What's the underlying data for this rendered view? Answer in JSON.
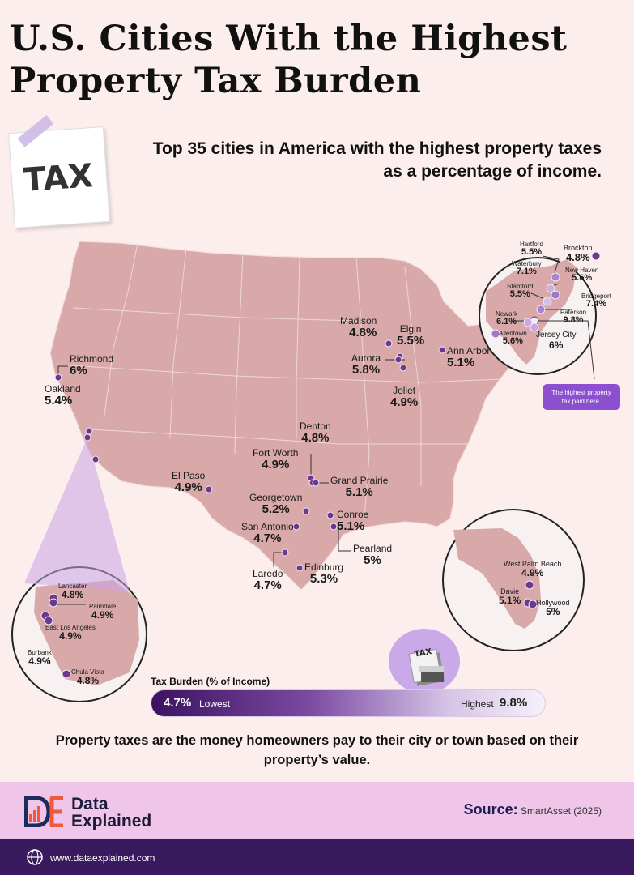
{
  "title_line1": "U.S. Cities With the Highest",
  "title_line2": "Property Tax Burden",
  "subtitle": "Top 35 cities in America with the highest property taxes as a percentage of income.",
  "note_text": "TAX",
  "callout_line1": "The highest property",
  "callout_line2": "tax paid here.",
  "legend": {
    "title": "Tax Burden (% of Income)",
    "low_value": "4.7%",
    "low_label": "Lowest",
    "high_label": "Highest",
    "high_value": "9.8%"
  },
  "footnote": "Property taxes are the money homeowners pay to their city or town based on their property’s value.",
  "brand": {
    "line1": "Data",
    "line2": "Explained"
  },
  "source": {
    "label": "Source:",
    "text": "SmartAsset (2025)"
  },
  "website": "www.dataexplained.com",
  "colors": {
    "background": "#fbeeed",
    "map_fill": "#d9a9a9",
    "accent_purple": "#6a3a8f",
    "footer_pink": "#efc6ea",
    "footer_dark": "#3a1a5e"
  },
  "cities": {
    "madison": {
      "name": "Madison",
      "value": "4.8%"
    },
    "elgin": {
      "name": "Elgin",
      "value": "5.5%"
    },
    "aurora": {
      "name": "Aurora",
      "value": "5.8%"
    },
    "joliet": {
      "name": "Joliet",
      "value": "4.9%"
    },
    "ann_arbor": {
      "name": "Ann Arbor",
      "value": "5.1%"
    },
    "richmond": {
      "name": "Richmond",
      "value": "6%"
    },
    "oakland": {
      "name": "Oakland",
      "value": "5.4%"
    },
    "denton": {
      "name": "Denton",
      "value": "4.8%"
    },
    "fort_worth": {
      "name": "Fort Worth",
      "value": "4.9%"
    },
    "grand_prairie": {
      "name": "Grand Prairie",
      "value": "5.1%"
    },
    "el_paso": {
      "name": "El Paso",
      "value": "4.9%"
    },
    "georgetown": {
      "name": "Georgetown",
      "value": "5.2%"
    },
    "conroe": {
      "name": "Conroe",
      "value": "5.1%"
    },
    "san_antonio": {
      "name": "San Antonio",
      "value": "4.7%"
    },
    "pearland": {
      "name": "Pearland",
      "value": "5%"
    },
    "laredo": {
      "name": "Laredo",
      "value": "4.7%"
    },
    "edinburg": {
      "name": "Edinburg",
      "value": "5.3%"
    },
    "hartford": {
      "name": "Hartford",
      "value": "5.5%"
    },
    "brockton": {
      "name": "Brockton",
      "value": "4.8%"
    },
    "waterbury": {
      "name": "Waterbury",
      "value": "7.1%"
    },
    "new_haven": {
      "name": "New Haven",
      "value": "5.6%"
    },
    "stamford": {
      "name": "Stamford",
      "value": "5.5%"
    },
    "bridgeport": {
      "name": "Bridgeport",
      "value": "7.4%"
    },
    "newark": {
      "name": "Newark",
      "value": "6.1%"
    },
    "paterson": {
      "name": "Paterson",
      "value": "9.8%"
    },
    "allentown": {
      "name": "Allentown",
      "value": "5.6%"
    },
    "jersey_city": {
      "name": "Jersey City",
      "value": "6%"
    },
    "west_palm_beach": {
      "name": "West Palm Beach",
      "value": "4.9%"
    },
    "davie": {
      "name": "Davie",
      "value": "5.1%"
    },
    "hollywood": {
      "name": "Hollywood",
      "value": "5%"
    },
    "lancaster": {
      "name": "Lancaster",
      "value": "4.8%"
    },
    "palmdale": {
      "name": "Palmdale",
      "value": "4.9%"
    },
    "east_los_angeles": {
      "name": "East Los Angeles",
      "value": "4.9%"
    },
    "burbank": {
      "name": "Burbank",
      "value": "4.9%"
    },
    "chula_vista": {
      "name": "Chula Vista",
      "value": "4.8%"
    }
  }
}
